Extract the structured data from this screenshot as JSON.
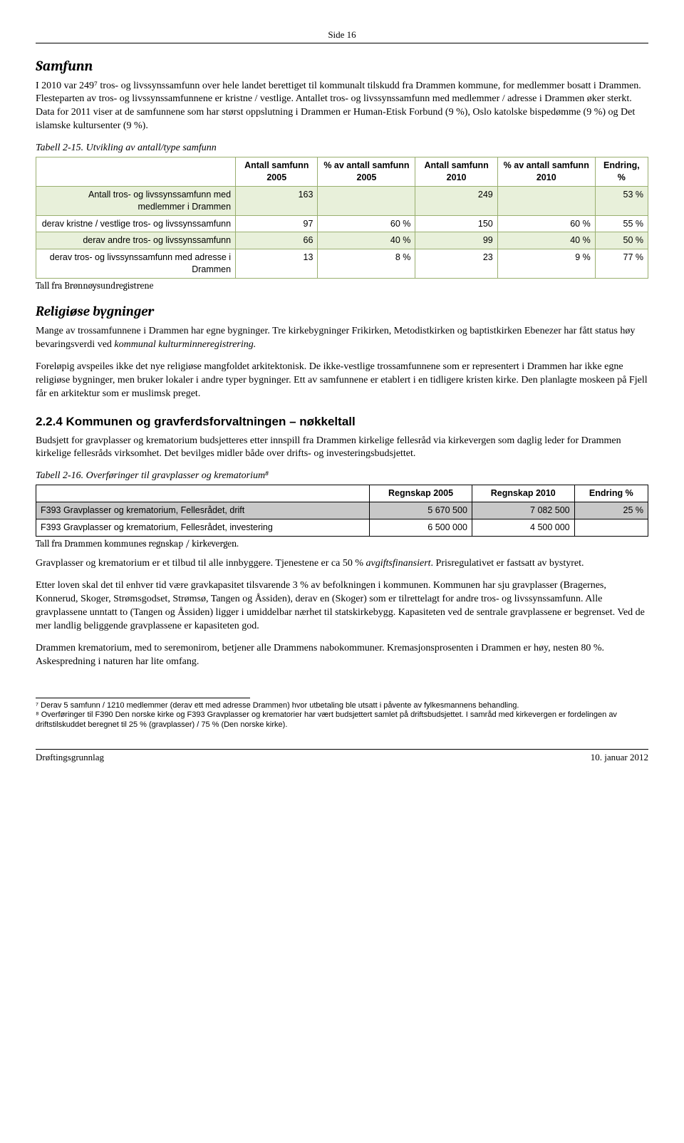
{
  "page_header": "Side 16",
  "h_samfunn": "Samfunn",
  "p1": "I 2010 var 249⁷ tros- og livssynssamfunn over hele landet berettiget til kommunalt tilskudd fra Drammen kommune, for medlemmer bosatt i Drammen. Flesteparten av tros- og livssynssamfunnene er kristne / vestlige. Antallet tros- og livssynssamfunn med medlemmer / adresse i Drammen øker sterkt. Data for 2011 viser at de samfunnene som har størst oppslutning i Drammen er Human-Etisk Forbund (9 %), Oslo katolske bispedømme (9 %) og Det islamske kultursenter (9 %).",
  "t1": {
    "caption": "Tabell 2-15. Utvikling av antall/type samfunn",
    "headers": [
      "",
      "Antall samfunn 2005",
      "% av antall samfunn 2005",
      "Antall samfunn 2010",
      "% av antall samfunn 2010",
      "Endring, %"
    ],
    "rows": [
      {
        "label": "Antall tros- og livssynssamfunn med medlemmer i Drammen",
        "c": [
          "163",
          "",
          "249",
          "",
          "53 %"
        ],
        "hl": true
      },
      {
        "label": "derav kristne / vestlige tros- og livssynssamfunn",
        "c": [
          "97",
          "60 %",
          "150",
          "60 %",
          "55 %"
        ],
        "hl": false
      },
      {
        "label": "derav andre tros- og livssynssamfunn",
        "c": [
          "66",
          "40 %",
          "99",
          "40 %",
          "50 %"
        ],
        "hl": true
      },
      {
        "label": "derav tros- og livssynssamfunn med adresse i Drammen",
        "c": [
          "13",
          "8 %",
          "23",
          "9 %",
          "77 %"
        ],
        "hl": false
      }
    ],
    "source": "Tall fra Brønnøysundregistrene"
  },
  "h_rel": "Religiøse bygninger",
  "p_rel1_a": "Mange av trossamfunnene i Drammen har egne bygninger. Tre kirkebygninger Frikirken, Metodistkirken og baptistkirken Ebenezer har fått status høy bevaringsverdi ved ",
  "p_rel1_b": "kommunal kulturminneregistrering.",
  "p_rel2": "Foreløpig avspeiles ikke det nye religiøse mangfoldet arkitektonisk. De ikke-vestlige trossamfunnene som er representert i Drammen har ikke egne religiøse bygninger, men bruker lokaler i andre typer bygninger. Ett av samfunnene er etablert i en tidligere kristen kirke. Den planlagte moskeen på Fjell får en arkitektur som er muslimsk preget.",
  "h_224": "2.2.4 Kommunen og gravferdsforvaltningen – nøkkeltall",
  "p_224": "Budsjett for gravplasser og krematorium budsjetteres etter innspill fra Drammen kirkelige fellesråd via kirkevergen som daglig leder for Drammen kirkelige fellesråds virksomhet. Det bevilges midler både over drifts- og investeringsbudsjettet.",
  "t2": {
    "caption": "Tabell 2-16. Overføringer til gravplasser og krematorium⁸",
    "headers": [
      "",
      "Regnskap 2005",
      "Regnskap 2010",
      "Endring %"
    ],
    "rows": [
      {
        "label": "F393 Gravplasser og krematorium, Fellesrådet, drift",
        "c": [
          "5 670 500",
          "7 082 500",
          "25 %"
        ],
        "grey": true
      },
      {
        "label": "F393 Gravplasser og krematorium, Fellesrådet, investering",
        "c": [
          "6 500 000",
          "4 500 000",
          ""
        ],
        "grey": false
      }
    ],
    "source": "Tall fra Drammen kommunes regnskap / kirkevergen."
  },
  "p_after1_a": "Gravplasser og krematorium er et tilbud til alle innbyggere. Tjenestene er ca 50 % ",
  "p_after1_b": "avgiftsfinansiert",
  "p_after1_c": ". Prisregulativet er fastsatt av bystyret.",
  "p_after2": "Etter loven skal det til enhver tid være gravkapasitet tilsvarende 3 % av befolkningen i kommunen. Kommunen har sju gravplasser (Bragernes, Konnerud, Skoger, Strømsgodset, Strømsø, Tangen og Åssiden), derav en (Skoger) som er tilrettelagt for andre tros- og livssynssamfunn. Alle gravplassene unntatt to (Tangen og Åssiden) ligger i umiddelbar nærhet til statskirkebygg. Kapasiteten ved de sentrale gravplassene er begrenset. Ved de mer landlig beliggende gravplassene er kapasiteten god.",
  "p_after3": "Drammen krematorium, med to seremonirom, betjener alle Drammens nabokommuner. Kremasjonsprosenten i Drammen er høy, nesten 80 %. Askespredning i naturen har lite omfang.",
  "fn7": "⁷ Derav 5 samfunn / 1210 medlemmer (derav ett med adresse Drammen) hvor utbetaling ble utsatt i påvente av fylkesmannens behandling.",
  "fn8": "⁸ Overføringer til F390 Den norske kirke og F393 Gravplasser og krematorier har vært budsjettert samlet på driftsbudsjettet. I samråd med kirkevergen er fordelingen av driftstilskuddet beregnet til 25 % (gravplasser) / 75 % (Den norske kirke).",
  "footer_left": "Drøftingsgrunnlag",
  "footer_right": "10. januar 2012"
}
